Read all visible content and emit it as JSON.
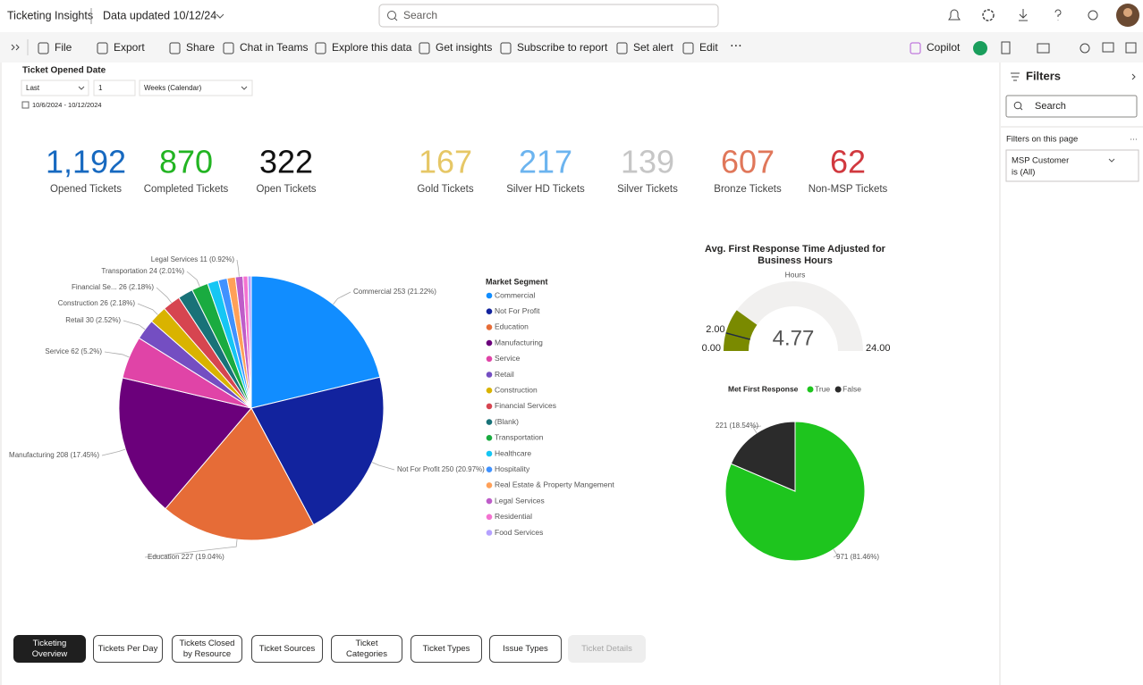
{
  "header": {
    "app": "Ticketing Insights",
    "updated": "Data updated 10/12/24",
    "search": "Search"
  },
  "toolbar": [
    "File",
    "Export",
    "Share",
    "Chat in Teams",
    "Explore this data",
    "Get insights",
    "Subscribe to report",
    "Set alert",
    "Edit",
    "Copilot"
  ],
  "slicer": {
    "title": "Ticket Opened Date",
    "mode": "Last",
    "count": "1",
    "unit": "Weeks (Calendar)",
    "range": "10/6/2024 - 10/12/2024"
  },
  "kpis": [
    {
      "value": "1,192",
      "label": "Opened Tickets",
      "color": "#1769c0"
    },
    {
      "value": "870",
      "label": "Completed Tickets",
      "color": "#22b422"
    },
    {
      "value": "322",
      "label": "Open Tickets",
      "color": "#111111"
    },
    {
      "value": "167",
      "label": "Gold Tickets",
      "color": "#e6c766"
    },
    {
      "value": "217",
      "label": "Silver HD Tickets",
      "color": "#6cb4ef"
    },
    {
      "value": "139",
      "label": "Silver Tickets",
      "color": "#c6c6c6"
    },
    {
      "value": "607",
      "label": "Bronze Tickets",
      "color": "#e0775a"
    },
    {
      "value": "62",
      "label": "Non-MSP Tickets",
      "color": "#d1393f"
    }
  ],
  "pie": {
    "type": "pie",
    "legend_title": "Market Segment",
    "categories": [
      "Commercial",
      "Not For Profit",
      "Education",
      "Manufacturing",
      "Service",
      "Retail",
      "Construction",
      "Financial Services",
      "(Blank)",
      "Transportation",
      "Healthcare",
      "Hospitality",
      "Real Estate & Property Mangement",
      "Legal Services",
      "Residential",
      "Food Services"
    ],
    "values": [
      253,
      250,
      227,
      208,
      62,
      30,
      26,
      26,
      22,
      24,
      16,
      13,
      12,
      11,
      7,
      5
    ],
    "value_labels": [
      "Commercial 253 (21.22%)",
      "Not For Profit 250 (20.97%)",
      "Education 227 (19.04%)",
      "Manufacturing 208 (17.45%)",
      "Service 62 (5.2%)",
      "Retail 30 (2.52%)",
      "Construction 26 (2.18%)",
      "Financial Se... 26 (2.18%)",
      null,
      "Transportation 24 (2.01%)",
      null,
      null,
      null,
      "Legal Services 11 (0.92%)",
      null,
      null
    ],
    "colors": [
      "#118dff",
      "#12239e",
      "#e66c37",
      "#6b007b",
      "#e044a7",
      "#744ec2",
      "#d9b300",
      "#d64550",
      "#197278",
      "#1aab40",
      "#15c6f4",
      "#4092ff",
      "#ffa058",
      "#be5dc9",
      "#f472d0",
      "#b5a1ff"
    ]
  },
  "gauge": {
    "type": "gauge",
    "title": [
      "Avg. First Response Time Adjusted for",
      "Business Hours"
    ],
    "subtitle": "Hours",
    "value": 4.77,
    "min": {
      "value": 0,
      "label": "0.00"
    },
    "max": {
      "value": 24,
      "label": "24.00"
    },
    "target": {
      "value": 2,
      "label": "2.00"
    },
    "color": "#7a8a00",
    "track_color": "#f1f0ef"
  },
  "met": {
    "type": "pie",
    "legend_title": "Met First Response",
    "categories": [
      "True",
      "False"
    ],
    "values": [
      971,
      221
    ],
    "value_labels": [
      "971 (81.46%)",
      "221 (18.54%)"
    ],
    "colors": [
      "#1ec51e",
      "#2b2b2b"
    ]
  },
  "tabs": [
    "Ticketing Overview",
    "Tickets Per Day",
    "Tickets Closed by Resource",
    "Ticket Sources",
    "Ticket Categories",
    "Ticket Types",
    "Issue Types",
    "Ticket Details"
  ],
  "filters": {
    "title": "Filters",
    "search": "Search",
    "section": "Filters on this page",
    "card_title": "MSP Customer",
    "card_value": "is (All)"
  }
}
